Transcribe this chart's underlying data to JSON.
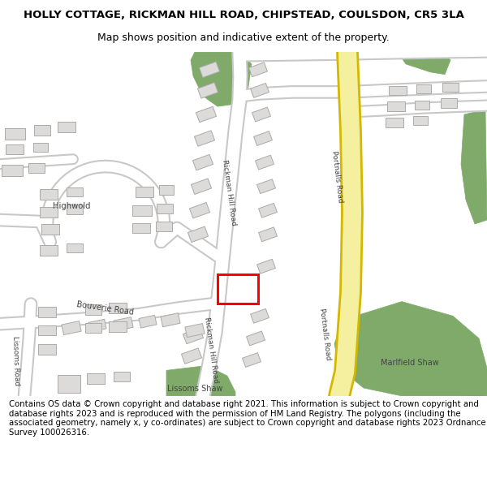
{
  "title_line1": "HOLLY COTTAGE, RICKMAN HILL ROAD, CHIPSTEAD, COULSDON, CR5 3LA",
  "title_line2": "Map shows position and indicative extent of the property.",
  "footer_text": "Contains OS data © Crown copyright and database right 2021. This information is subject to Crown copyright and database rights 2023 and is reproduced with the permission of HM Land Registry. The polygons (including the associated geometry, namely x, y co-ordinates) are subject to Crown copyright and database rights 2023 Ordnance Survey 100026316.",
  "bg_color": "#ffffff",
  "map_bg": "#f5f3ee",
  "road_fill": "#ffffff",
  "road_edge": "#c8c8c8",
  "building_fill": "#dddada",
  "building_edge": "#aaaaaa",
  "green_color": "#7faa6a",
  "yellow_fill": "#f5f0a0",
  "yellow_edge": "#d4b800",
  "property_color": "#ff0000",
  "label_color": "#444444"
}
